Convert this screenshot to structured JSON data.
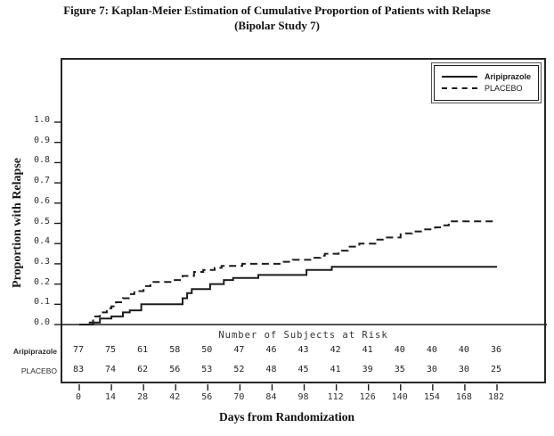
{
  "figure": {
    "title_line1": "Figure 7: Kaplan-Meier Estimation of Cumulative Proportion of Patients with Relapse",
    "title_line2": "(Bipolar Study 7)"
  },
  "colors": {
    "ink": "#1c1c1c",
    "paper": "#ffffff"
  },
  "chart_data": {
    "type": "line",
    "subtype": "kaplan_meier_step",
    "title": "Figure 7: Kaplan-Meier Estimation of Cumulative Proportion of Patients with Relapse (Bipolar Study 7)",
    "xlabel": "Days from Randomization",
    "ylabel": "Proportion with Relapse",
    "xlim": [
      0,
      182
    ],
    "ylim": [
      0.0,
      1.0
    ],
    "grid": false,
    "x_ticks": [
      0,
      14,
      28,
      42,
      56,
      70,
      84,
      98,
      112,
      126,
      140,
      154,
      168,
      182
    ],
    "y_tick_labels": [
      "0.0",
      "0.1",
      "0.2",
      "0.3",
      "0.4",
      "0.5",
      "0.6",
      "0.7",
      "0.8",
      "0.9",
      "1.0"
    ],
    "legend": {
      "position": "top-right",
      "entries": [
        {
          "label": "Aripiprazole",
          "line_style": "solid"
        },
        {
          "label": "PLACEBO",
          "line_style": "dashed"
        }
      ]
    },
    "series": [
      {
        "name": "Aripiprazole",
        "line_style": "solid",
        "step_points": [
          [
            0,
            0.0
          ],
          [
            6,
            0.01
          ],
          [
            9,
            0.03
          ],
          [
            14,
            0.04
          ],
          [
            19,
            0.06
          ],
          [
            22,
            0.07
          ],
          [
            27,
            0.1
          ],
          [
            45,
            0.13
          ],
          [
            47,
            0.155
          ],
          [
            49,
            0.175
          ],
          [
            57,
            0.2
          ],
          [
            63,
            0.22
          ],
          [
            67,
            0.23
          ],
          [
            78,
            0.245
          ],
          [
            99,
            0.27
          ],
          [
            110,
            0.285
          ],
          [
            182,
            0.285
          ]
        ]
      },
      {
        "name": "PLACEBO",
        "line_style": "dashed",
        "step_points": [
          [
            0,
            0.0
          ],
          [
            3,
            0.01
          ],
          [
            6,
            0.04
          ],
          [
            9,
            0.06
          ],
          [
            12,
            0.08
          ],
          [
            14,
            0.09
          ],
          [
            16,
            0.11
          ],
          [
            19,
            0.13
          ],
          [
            22,
            0.15
          ],
          [
            24,
            0.165
          ],
          [
            28,
            0.19
          ],
          [
            31,
            0.21
          ],
          [
            41,
            0.22
          ],
          [
            45,
            0.24
          ],
          [
            50,
            0.26
          ],
          [
            54,
            0.27
          ],
          [
            59,
            0.28
          ],
          [
            62,
            0.29
          ],
          [
            71,
            0.3
          ],
          [
            88,
            0.31
          ],
          [
            93,
            0.32
          ],
          [
            102,
            0.33
          ],
          [
            105,
            0.34
          ],
          [
            107,
            0.35
          ],
          [
            113,
            0.365
          ],
          [
            117,
            0.385
          ],
          [
            122,
            0.4
          ],
          [
            129,
            0.42
          ],
          [
            133,
            0.43
          ],
          [
            140,
            0.45
          ],
          [
            145,
            0.46
          ],
          [
            150,
            0.47
          ],
          [
            155,
            0.48
          ],
          [
            158,
            0.49
          ],
          [
            161,
            0.51
          ],
          [
            182,
            0.51
          ]
        ]
      }
    ],
    "risk_table": {
      "header": "Number of Subjects at Risk",
      "days": [
        0,
        14,
        28,
        42,
        56,
        70,
        84,
        98,
        112,
        126,
        140,
        154,
        168,
        182
      ],
      "rows": [
        {
          "label": "Aripiprazole",
          "values": [
            "77",
            "75",
            "61",
            "58",
            "50",
            "47",
            "46",
            "43",
            "42",
            "41",
            "40",
            "40",
            "40",
            "36"
          ]
        },
        {
          "label": "PLACEBO",
          "values": [
            "83",
            "74",
            "62",
            "56",
            "53",
            "52",
            "48",
            "45",
            "41",
            "39",
            "35",
            "30",
            "30",
            "25"
          ]
        }
      ]
    }
  }
}
